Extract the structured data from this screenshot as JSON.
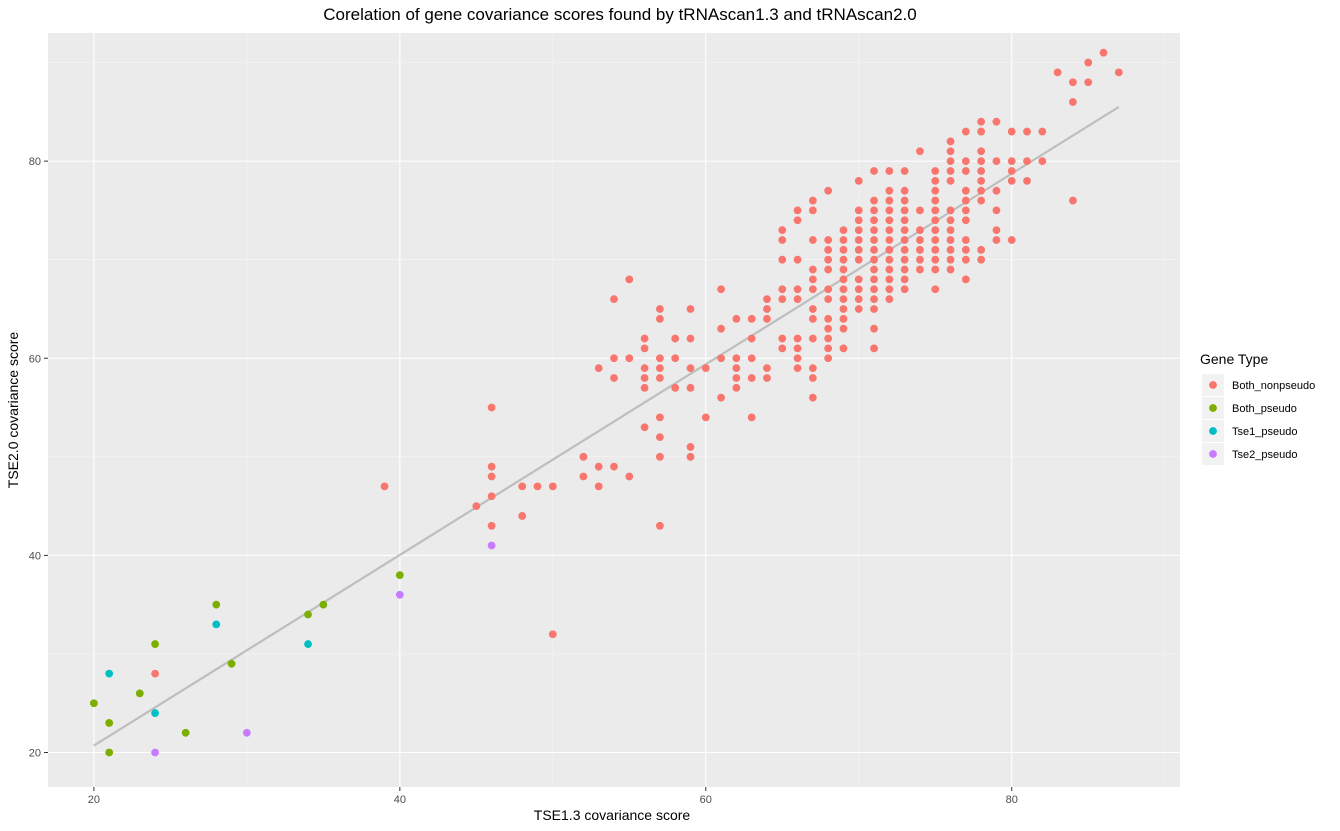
{
  "chart_data": {
    "type": "scatter",
    "title": "Corelation of gene covariance scores found by tRNAscan1.3 and tRNAscan2.0",
    "xlabel": "TSE1.3 covariance score",
    "ylabel": "TSE2.0 covariance score",
    "xlim": [
      17,
      91
    ],
    "ylim": [
      16.5,
      93
    ],
    "xticks": [
      20,
      40,
      60,
      80
    ],
    "yticks": [
      20,
      40,
      60,
      80
    ],
    "grid": true,
    "legend_title": "Gene Type",
    "legend_position": "right",
    "trendline": {
      "x": [
        20,
        87
      ],
      "y": [
        20.7,
        85.5
      ],
      "color": "#bebebe"
    },
    "series": [
      {
        "name": "Both_nonpseudo",
        "color": "#F8766D",
        "points": [
          [
            24,
            28
          ],
          [
            39,
            47
          ],
          [
            45,
            45
          ],
          [
            46,
            55
          ],
          [
            46,
            49
          ],
          [
            46,
            48
          ],
          [
            46,
            46
          ],
          [
            46,
            43
          ],
          [
            48,
            47
          ],
          [
            48,
            44
          ],
          [
            49,
            47
          ],
          [
            50,
            47
          ],
          [
            50,
            32
          ],
          [
            52,
            50
          ],
          [
            52,
            48
          ],
          [
            53,
            59
          ],
          [
            53,
            49
          ],
          [
            53,
            47
          ],
          [
            54,
            66
          ],
          [
            54,
            60
          ],
          [
            54,
            58
          ],
          [
            54,
            49
          ],
          [
            55,
            68
          ],
          [
            55,
            60
          ],
          [
            55,
            48
          ],
          [
            56,
            62
          ],
          [
            56,
            61
          ],
          [
            56,
            59
          ],
          [
            56,
            58
          ],
          [
            56,
            57
          ],
          [
            56,
            53
          ],
          [
            57,
            65
          ],
          [
            57,
            64
          ],
          [
            57,
            60
          ],
          [
            57,
            59
          ],
          [
            57,
            58
          ],
          [
            57,
            54
          ],
          [
            57,
            52
          ],
          [
            57,
            50
          ],
          [
            57,
            43
          ],
          [
            58,
            62
          ],
          [
            58,
            60
          ],
          [
            58,
            57
          ],
          [
            59,
            65
          ],
          [
            59,
            62
          ],
          [
            59,
            59
          ],
          [
            59,
            57
          ],
          [
            59,
            51
          ],
          [
            59,
            50
          ],
          [
            60,
            59
          ],
          [
            60,
            54
          ],
          [
            61,
            67
          ],
          [
            61,
            63
          ],
          [
            61,
            60
          ],
          [
            61,
            56
          ],
          [
            62,
            64
          ],
          [
            62,
            60
          ],
          [
            62,
            59
          ],
          [
            62,
            58
          ],
          [
            62,
            57
          ],
          [
            63,
            64
          ],
          [
            63,
            62
          ],
          [
            63,
            60
          ],
          [
            63,
            58
          ],
          [
            63,
            54
          ],
          [
            64,
            66
          ],
          [
            64,
            65
          ],
          [
            64,
            64
          ],
          [
            64,
            59
          ],
          [
            64,
            58
          ],
          [
            65,
            73
          ],
          [
            65,
            72
          ],
          [
            65,
            70
          ],
          [
            65,
            67
          ],
          [
            65,
            66
          ],
          [
            65,
            62
          ],
          [
            65,
            61
          ],
          [
            66,
            75
          ],
          [
            66,
            74
          ],
          [
            66,
            70
          ],
          [
            66,
            67
          ],
          [
            66,
            66
          ],
          [
            66,
            62
          ],
          [
            66,
            61
          ],
          [
            66,
            60
          ],
          [
            66,
            59
          ],
          [
            67,
            76
          ],
          [
            67,
            75
          ],
          [
            67,
            72
          ],
          [
            67,
            69
          ],
          [
            67,
            68
          ],
          [
            67,
            67
          ],
          [
            67,
            65
          ],
          [
            67,
            64
          ],
          [
            67,
            62
          ],
          [
            67,
            59
          ],
          [
            67,
            58
          ],
          [
            67,
            56
          ],
          [
            68,
            77
          ],
          [
            68,
            72
          ],
          [
            68,
            71
          ],
          [
            68,
            70
          ],
          [
            68,
            69
          ],
          [
            68,
            67
          ],
          [
            68,
            66
          ],
          [
            68,
            64
          ],
          [
            68,
            63
          ],
          [
            68,
            62
          ],
          [
            68,
            61
          ],
          [
            68,
            60
          ],
          [
            69,
            73
          ],
          [
            69,
            72
          ],
          [
            69,
            71
          ],
          [
            69,
            70
          ],
          [
            69,
            69
          ],
          [
            69,
            68
          ],
          [
            69,
            67
          ],
          [
            69,
            66
          ],
          [
            69,
            65
          ],
          [
            69,
            64
          ],
          [
            69,
            63
          ],
          [
            69,
            61
          ],
          [
            70,
            78
          ],
          [
            70,
            75
          ],
          [
            70,
            74
          ],
          [
            70,
            73
          ],
          [
            70,
            72
          ],
          [
            70,
            71
          ],
          [
            70,
            70
          ],
          [
            70,
            68
          ],
          [
            70,
            67
          ],
          [
            70,
            66
          ],
          [
            70,
            65
          ],
          [
            71,
            79
          ],
          [
            71,
            76
          ],
          [
            71,
            75
          ],
          [
            71,
            74
          ],
          [
            71,
            73
          ],
          [
            71,
            72
          ],
          [
            71,
            71
          ],
          [
            71,
            70
          ],
          [
            71,
            69
          ],
          [
            71,
            68
          ],
          [
            71,
            67
          ],
          [
            71,
            66
          ],
          [
            71,
            65
          ],
          [
            71,
            63
          ],
          [
            71,
            61
          ],
          [
            72,
            79
          ],
          [
            72,
            77
          ],
          [
            72,
            76
          ],
          [
            72,
            75
          ],
          [
            72,
            74
          ],
          [
            72,
            73
          ],
          [
            72,
            72
          ],
          [
            72,
            71
          ],
          [
            72,
            70
          ],
          [
            72,
            69
          ],
          [
            72,
            68
          ],
          [
            72,
            67
          ],
          [
            72,
            66
          ],
          [
            73,
            79
          ],
          [
            73,
            77
          ],
          [
            73,
            76
          ],
          [
            73,
            75
          ],
          [
            73,
            74
          ],
          [
            73,
            73
          ],
          [
            73,
            72
          ],
          [
            73,
            71
          ],
          [
            73,
            70
          ],
          [
            73,
            69
          ],
          [
            73,
            68
          ],
          [
            73,
            67
          ],
          [
            74,
            81
          ],
          [
            74,
            75
          ],
          [
            74,
            73
          ],
          [
            74,
            72
          ],
          [
            74,
            71
          ],
          [
            74,
            70
          ],
          [
            74,
            69
          ],
          [
            75,
            79
          ],
          [
            75,
            78
          ],
          [
            75,
            77
          ],
          [
            75,
            76
          ],
          [
            75,
            75
          ],
          [
            75,
            74
          ],
          [
            75,
            73
          ],
          [
            75,
            72
          ],
          [
            75,
            71
          ],
          [
            75,
            70
          ],
          [
            75,
            69
          ],
          [
            75,
            67
          ],
          [
            76,
            82
          ],
          [
            76,
            81
          ],
          [
            76,
            80
          ],
          [
            76,
            79
          ],
          [
            76,
            78
          ],
          [
            76,
            75
          ],
          [
            76,
            74
          ],
          [
            76,
            73
          ],
          [
            76,
            72
          ],
          [
            76,
            71
          ],
          [
            76,
            70
          ],
          [
            76,
            69
          ],
          [
            77,
            83
          ],
          [
            77,
            80
          ],
          [
            77,
            79
          ],
          [
            77,
            77
          ],
          [
            77,
            76
          ],
          [
            77,
            75
          ],
          [
            77,
            74
          ],
          [
            77,
            72
          ],
          [
            77,
            71
          ],
          [
            77,
            70
          ],
          [
            77,
            68
          ],
          [
            78,
            84
          ],
          [
            78,
            83
          ],
          [
            78,
            81
          ],
          [
            78,
            80
          ],
          [
            78,
            79
          ],
          [
            78,
            78
          ],
          [
            78,
            77
          ],
          [
            78,
            76
          ],
          [
            78,
            71
          ],
          [
            78,
            70
          ],
          [
            79,
            84
          ],
          [
            79,
            80
          ],
          [
            79,
            77
          ],
          [
            79,
            75
          ],
          [
            79,
            73
          ],
          [
            79,
            72
          ],
          [
            80,
            83
          ],
          [
            80,
            80
          ],
          [
            80,
            79
          ],
          [
            80,
            78
          ],
          [
            80,
            72
          ],
          [
            81,
            83
          ],
          [
            81,
            80
          ],
          [
            81,
            78
          ],
          [
            82,
            83
          ],
          [
            82,
            80
          ],
          [
            83,
            89
          ],
          [
            84,
            88
          ],
          [
            84,
            86
          ],
          [
            84,
            76
          ],
          [
            85,
            90
          ],
          [
            85,
            88
          ],
          [
            86,
            91
          ],
          [
            87,
            89
          ]
        ]
      },
      {
        "name": "Both_pseudo",
        "color": "#7CAE00",
        "points": [
          [
            20,
            25
          ],
          [
            21,
            23
          ],
          [
            21,
            20
          ],
          [
            23,
            26
          ],
          [
            24,
            31
          ],
          [
            26,
            22
          ],
          [
            28,
            35
          ],
          [
            29,
            29
          ],
          [
            34,
            34
          ],
          [
            35,
            35
          ],
          [
            40,
            38
          ]
        ]
      },
      {
        "name": "Tse1_pseudo",
        "color": "#00BFC4",
        "points": [
          [
            21,
            28
          ],
          [
            24,
            24
          ],
          [
            28,
            33
          ],
          [
            34,
            31
          ]
        ]
      },
      {
        "name": "Tse2_pseudo",
        "color": "#C77CFF",
        "points": [
          [
            24,
            20
          ],
          [
            30,
            22
          ],
          [
            40,
            36
          ],
          [
            46,
            41
          ]
        ]
      }
    ]
  }
}
